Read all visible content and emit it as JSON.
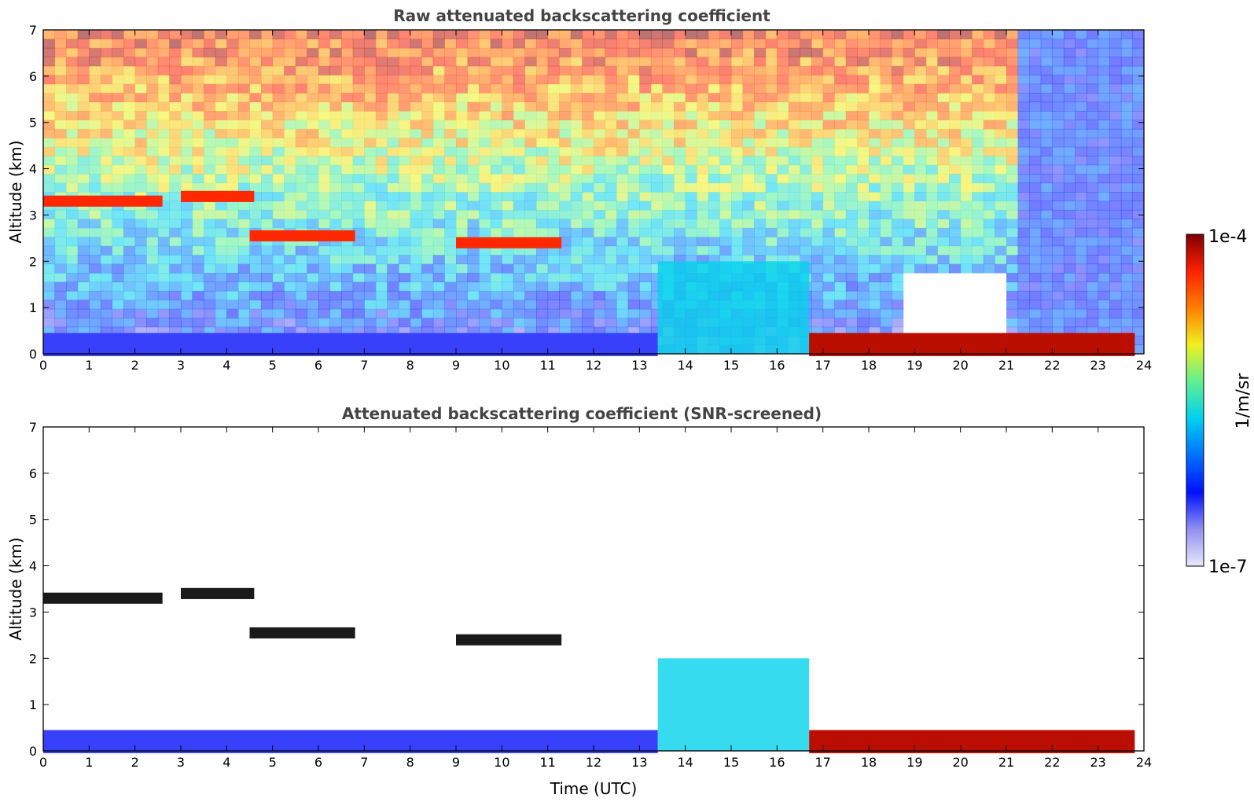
{
  "chart_data": [
    {
      "type": "heatmap",
      "title": "Raw attenuated backscattering coefficient",
      "xlabel": "",
      "ylabel": "Altitude (km)",
      "xlim": [
        0,
        24
      ],
      "ylim": [
        0,
        7
      ],
      "xticks": [
        "0",
        "1",
        "2",
        "3",
        "4",
        "5",
        "6",
        "7",
        "8",
        "9",
        "10",
        "11",
        "12",
        "13",
        "14",
        "15",
        "16",
        "17",
        "18",
        "19",
        "20",
        "21",
        "22",
        "23",
        "24"
      ],
      "yticks": [
        "0",
        "1",
        "2",
        "3",
        "4",
        "5",
        "6",
        "7"
      ],
      "grid": false,
      "features": [
        {
          "name": "cloud layer",
          "start": 0.0,
          "end": 2.6,
          "altitude": 3.3
        },
        {
          "name": "cloud layer",
          "start": 3.0,
          "end": 4.6,
          "altitude": 3.4
        },
        {
          "name": "cloud layer",
          "start": 4.5,
          "end": 6.8,
          "altitude": 2.55
        },
        {
          "name": "cloud layer",
          "start": 9.0,
          "end": 11.3,
          "altitude": 2.4
        },
        {
          "name": "boundary layer",
          "start": 0.0,
          "end": 13.4,
          "altitude": 0.2
        },
        {
          "name": "rain streaks",
          "start": 13.4,
          "end": 16.7,
          "altitude": 1.3
        },
        {
          "name": "low cloud",
          "start": 16.7,
          "end": 23.8,
          "altitude": 0.2
        }
      ]
    },
    {
      "type": "heatmap",
      "title": "Attenuated backscattering coefficient (SNR-screened)",
      "xlabel": "Time (UTC)",
      "ylabel": "Altitude (km)",
      "xlim": [
        0,
        24
      ],
      "ylim": [
        0,
        7
      ],
      "xticks": [
        "0",
        "1",
        "2",
        "3",
        "4",
        "5",
        "6",
        "7",
        "8",
        "9",
        "10",
        "11",
        "12",
        "13",
        "14",
        "15",
        "16",
        "17",
        "18",
        "19",
        "20",
        "21",
        "22",
        "23",
        "24"
      ],
      "yticks": [
        "0",
        "1",
        "2",
        "3",
        "4",
        "5",
        "6",
        "7"
      ],
      "grid": false,
      "features": [
        {
          "name": "cloud layer",
          "start": 0.0,
          "end": 2.6,
          "altitude": 3.3
        },
        {
          "name": "cloud layer",
          "start": 3.0,
          "end": 4.6,
          "altitude": 3.4
        },
        {
          "name": "cloud layer",
          "start": 4.5,
          "end": 6.8,
          "altitude": 2.55
        },
        {
          "name": "cloud layer",
          "start": 9.0,
          "end": 11.3,
          "altitude": 2.4
        },
        {
          "name": "boundary layer",
          "start": 0.0,
          "end": 13.4,
          "altitude": 0.2
        },
        {
          "name": "rain streaks",
          "start": 13.4,
          "end": 16.7,
          "altitude": 1.3
        },
        {
          "name": "low cloud",
          "start": 16.7,
          "end": 23.8,
          "altitude": 0.2
        }
      ]
    }
  ],
  "colorbar": {
    "max_label": "1e-4",
    "min_label": "1e-7",
    "unit_label": "1/m/sr",
    "scale": "log",
    "colors": [
      "#e8e8f8",
      "#9090f0",
      "#0010ff",
      "#0070ff",
      "#00d0f0",
      "#60f090",
      "#f0f020",
      "#ff8000",
      "#ff2000",
      "#800000"
    ]
  }
}
